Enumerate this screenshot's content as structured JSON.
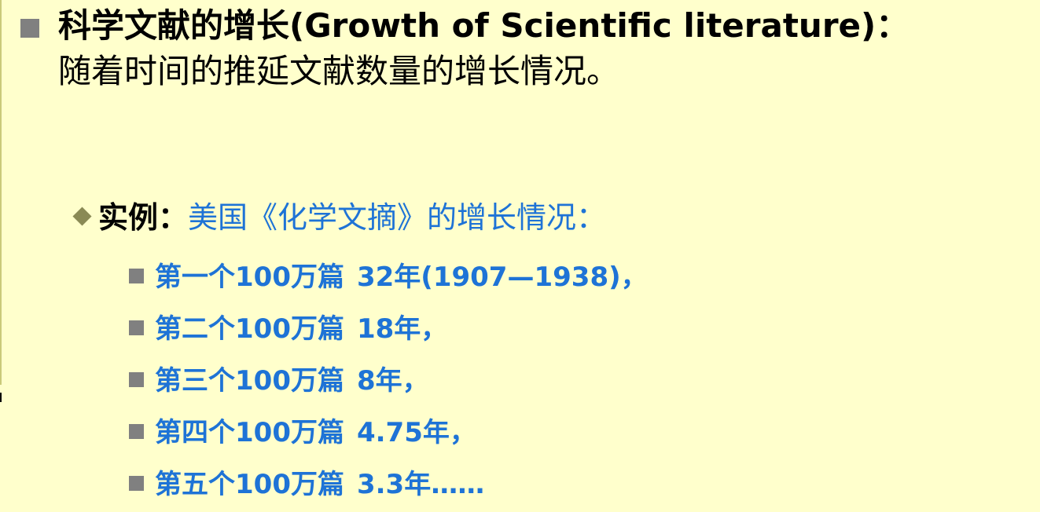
{
  "heading": {
    "text": "科学文献的增长(Growth of Scientific literature)：",
    "continuation": "随着时间的推延文献数量的增长情况。"
  },
  "example": {
    "label": "实例：",
    "title": "美国《化学文摘》的增长情况："
  },
  "items": [
    {
      "label": "第一个100万篇",
      "value": "32年(1907—1938)，"
    },
    {
      "label": "第二个100万篇",
      "value": "18年，"
    },
    {
      "label": "第三个100万篇",
      "value": "8年，"
    },
    {
      "label": "第四个100万篇",
      "value": "4.75年，"
    },
    {
      "label": "第五个100万篇",
      "value": "3.3年……"
    }
  ],
  "colors": {
    "background": "#FFFFCC",
    "text": "#000000",
    "accent": "#1E73D6",
    "bullet": "#808080",
    "diamond": "#8A8A55"
  }
}
